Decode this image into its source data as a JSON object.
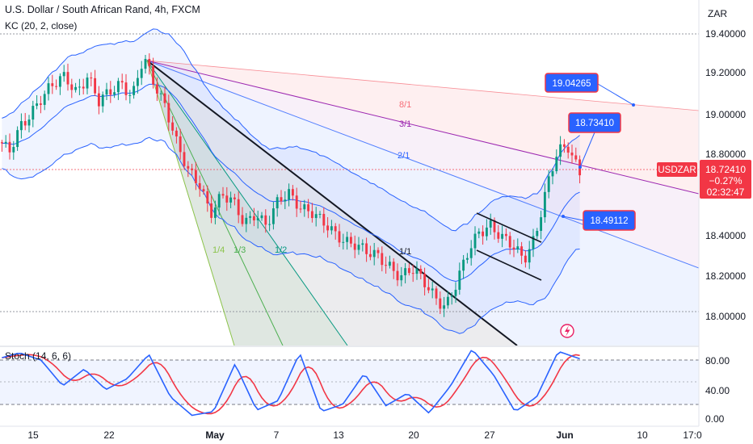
{
  "header": {
    "title": "U.S. Dollar / South African Rand, 4h, FXCM",
    "indicator": "KC (20, 2, close)"
  },
  "currency": "ZAR",
  "osc": {
    "label": "Stoch (14, 6, 6)",
    "ticks": [
      "80.00",
      "40.00",
      "0.00"
    ]
  },
  "price_axis": {
    "ticks": [
      "19.40000",
      "19.20000",
      "19.00000",
      "18.80000",
      "18.40000",
      "18.20000",
      "18.00000"
    ]
  },
  "time_axis": {
    "ticks": [
      "15",
      "22",
      "May",
      "7",
      "13",
      "20",
      "27",
      "Jun",
      "10",
      "17:0"
    ]
  },
  "fan_labels": {
    "f81": "8/1",
    "f31": "3/1",
    "f21": "2/1",
    "f11": "1/1",
    "f12": "1/2",
    "f13": "1/3",
    "f14": "1/4"
  },
  "callouts": {
    "c1": "19.04265",
    "c2": "18.73410",
    "c3": "18.49112"
  },
  "last_price": {
    "symbol": "USDZAR",
    "value": "18.72410",
    "change": "−0.27%",
    "countdown": "02:32:47"
  },
  "colors": {
    "up": "#089981",
    "down": "#f23645",
    "kc": "#2962ff",
    "stoch_k": "#2962ff",
    "stoch_d": "#f23645",
    "callout": "#2962ff"
  },
  "chart_data": {
    "type": "candlestick",
    "price_range": [
      17.92,
      19.44
    ],
    "keltner": {
      "period": 20,
      "mult": 2,
      "source": "close"
    },
    "price_path": [
      [
        "Apr 11",
        18.86
      ],
      [
        "Apr 12",
        18.8
      ],
      [
        "Apr 13",
        18.95
      ],
      [
        "Apr 15",
        19.02
      ],
      [
        "Apr 16",
        19.08
      ],
      [
        "Apr 17",
        19.14
      ],
      [
        "Apr 18",
        19.2
      ],
      [
        "Apr 19",
        19.12
      ],
      [
        "Apr 21",
        19.18
      ],
      [
        "Apr 22",
        19.05
      ],
      [
        "Apr 23",
        19.12
      ],
      [
        "Apr 24",
        19.17
      ],
      [
        "Apr 25",
        19.08
      ],
      [
        "Apr 26",
        19.27
      ],
      [
        "Apr 27",
        19.15
      ],
      [
        "Apr 28",
        19.05
      ],
      [
        "Apr 29",
        18.85
      ],
      [
        "Apr 30",
        18.7
      ],
      [
        "May 1",
        18.65
      ],
      [
        "May 2",
        18.52
      ],
      [
        "May 3",
        18.6
      ],
      [
        "May 4",
        18.55
      ],
      [
        "May 5",
        18.45
      ],
      [
        "May 6",
        18.52
      ],
      [
        "May 7",
        18.45
      ],
      [
        "May 8",
        18.55
      ],
      [
        "May 9",
        18.6
      ],
      [
        "May 10",
        18.55
      ],
      [
        "May 11",
        18.52
      ],
      [
        "May 12",
        18.45
      ],
      [
        "May 13",
        18.4
      ],
      [
        "May 14",
        18.38
      ],
      [
        "May 15",
        18.36
      ],
      [
        "May 16",
        18.3
      ],
      [
        "May 17",
        18.28
      ],
      [
        "May 18",
        18.25
      ],
      [
        "May 19",
        18.2
      ],
      [
        "May 20",
        18.22
      ],
      [
        "May 21",
        18.16
      ],
      [
        "May 22",
        18.1
      ],
      [
        "May 23",
        18.05
      ],
      [
        "May 24",
        18.15
      ],
      [
        "May 25",
        18.3
      ],
      [
        "May 26",
        18.42
      ],
      [
        "May 27",
        18.46
      ],
      [
        "May 28",
        18.38
      ],
      [
        "May 29",
        18.33
      ],
      [
        "May 30",
        18.28
      ],
      [
        "May 31",
        18.4
      ],
      [
        "Jun 1",
        18.62
      ],
      [
        "Jun 2",
        18.8
      ],
      [
        "Jun 3",
        18.84
      ],
      [
        "Jun 4",
        18.72
      ]
    ],
    "stoch_k_path": [
      [
        "Apr 11",
        82
      ],
      [
        "Apr 13",
        90
      ],
      [
        "Apr 15",
        80
      ],
      [
        "Apr 17",
        45
      ],
      [
        "Apr 19",
        68
      ],
      [
        "Apr 21",
        40
      ],
      [
        "Apr 23",
        55
      ],
      [
        "Apr 25",
        88
      ],
      [
        "Apr 27",
        30
      ],
      [
        "Apr 29",
        5
      ],
      [
        "May 1",
        10
      ],
      [
        "May 3",
        75
      ],
      [
        "May 5",
        12
      ],
      [
        "May 7",
        25
      ],
      [
        "May 9",
        90
      ],
      [
        "May 11",
        10
      ],
      [
        "May 13",
        20
      ],
      [
        "May 15",
        62
      ],
      [
        "May 17",
        18
      ],
      [
        "May 19",
        35
      ],
      [
        "May 21",
        8
      ],
      [
        "May 23",
        45
      ],
      [
        "May 25",
        95
      ],
      [
        "May 27",
        60
      ],
      [
        "May 29",
        10
      ],
      [
        "May 31",
        30
      ],
      [
        "Jun 2",
        92
      ],
      [
        "Jun 4",
        82
      ]
    ]
  }
}
